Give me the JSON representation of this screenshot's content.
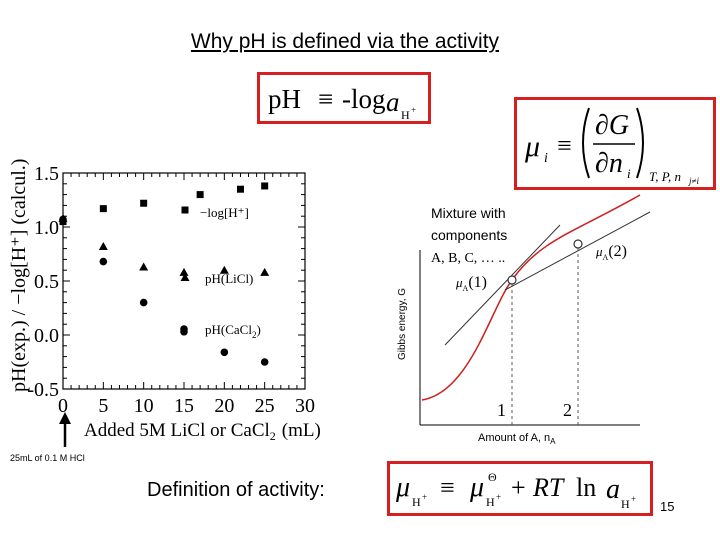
{
  "slide": {
    "title": "Why pH is defined via the activity",
    "definition_label": "Definition of activity:",
    "page_number": "15",
    "footnote": "25mL of 0.1 M HCl"
  },
  "equations": {
    "ph": {
      "lhs": "pH",
      "op": "≡",
      "rhs": "-log",
      "var": "a",
      "sub": "H",
      "sup": "+"
    },
    "chemical_potential": {
      "mu": "μ",
      "sub_i": "i",
      "op": "≡",
      "num": "∂G",
      "den": "∂n",
      "den_sub": "i",
      "held": "T, P, n",
      "held_sub": "j≠i"
    },
    "activity": {
      "mu": "μ",
      "sub": "H",
      "sup": "+",
      "op": "≡",
      "theta": "Θ",
      "plus": "+",
      "RT": "RT",
      "ln": "ln",
      "a": "a"
    }
  },
  "chart_data": [
    {
      "type": "scatter",
      "xlabel": "Added 5M LiCl or CaCl",
      "xlabel_sub": "2",
      "xlabel_unit": "(mL)",
      "ylabel": "pH(exp.) / −log[H⁺] (calcul.)",
      "xlim": [
        0,
        30
      ],
      "ylim": [
        -0.5,
        1.5
      ],
      "x_ticks": [
        "0",
        "5",
        "10",
        "15",
        "20",
        "25",
        "30"
      ],
      "y_ticks": [
        "1.5",
        "1.0",
        "0.5",
        "0.0",
        "-0.5"
      ],
      "series": [
        {
          "name": "−log[H⁺]",
          "marker": "square",
          "points": [
            [
              0,
              1.05
            ],
            [
              5,
              1.17
            ],
            [
              10,
              1.22
            ],
            [
              17,
              1.3
            ],
            [
              22,
              1.35
            ],
            [
              25,
              1.38
            ]
          ]
        },
        {
          "name": "pH(LiCl)",
          "marker": "triangle",
          "points": [
            [
              0,
              1.08
            ],
            [
              5,
              0.82
            ],
            [
              10,
              0.63
            ],
            [
              15,
              0.58
            ],
            [
              20,
              0.6
            ],
            [
              25,
              0.58
            ]
          ]
        },
        {
          "name": "pH(CaCl₂)",
          "name_main": "pH(CaCl",
          "name_sub": "2",
          "name_end": ")",
          "marker": "circle",
          "points": [
            [
              0,
              1.07
            ],
            [
              5,
              0.68
            ],
            [
              10,
              0.3
            ],
            [
              15,
              0.03
            ],
            [
              20,
              -0.16
            ],
            [
              25,
              -0.25
            ]
          ]
        }
      ]
    },
    {
      "type": "line",
      "annotation": "Mixture with components",
      "annotation_components": "A, B, C, … ..",
      "xlabel": "Amount of A, n",
      "xlabel_sub": "A",
      "ylabel": "Gibbs energy, G",
      "x_markers": [
        "1",
        "2"
      ],
      "tangent_labels": [
        {
          "main": "μ",
          "sub": "A",
          "arg": "(1)"
        },
        {
          "main": "μ",
          "sub": "A",
          "arg": "(2)"
        }
      ]
    }
  ]
}
